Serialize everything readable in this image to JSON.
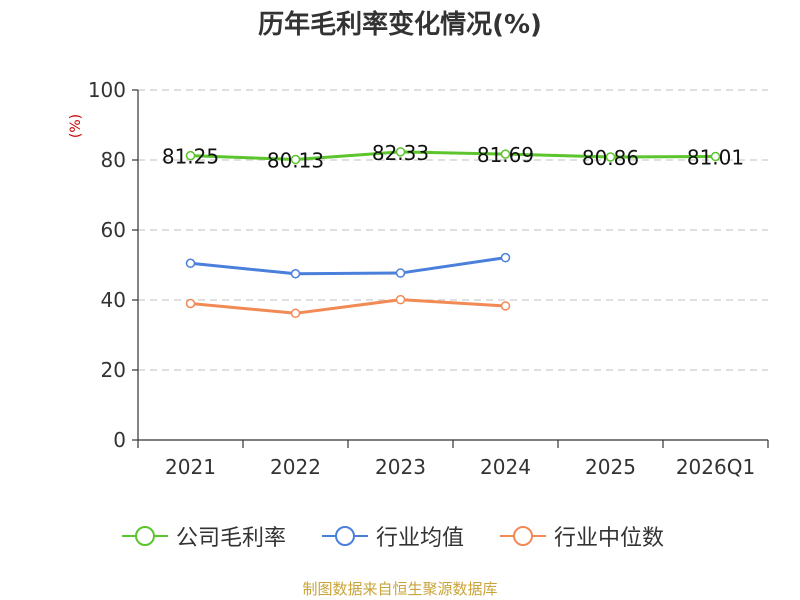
{
  "chart_data": {
    "type": "line",
    "title": "历年毛利率变化情况(%)",
    "ylabel": "(%)",
    "xlabel": "",
    "categories": [
      "2021",
      "2022",
      "2023",
      "2024",
      "2025",
      "2026Q1"
    ],
    "ylim": [
      0,
      100
    ],
    "yticks": [
      0,
      20,
      40,
      60,
      80,
      100
    ],
    "grid": true,
    "legend_position": "bottom",
    "series": [
      {
        "name": "公司毛利率",
        "color": "#5cc42c",
        "values": [
          81.25,
          80.13,
          82.33,
          81.69,
          80.86,
          81.01
        ],
        "labels": [
          "81.25",
          "80.13",
          "82.33",
          "81.69",
          "80.86",
          "81.01"
        ]
      },
      {
        "name": "行业均值",
        "color": "#4a7fdc",
        "values": [
          50.5,
          47.5,
          47.7,
          52.1,
          null,
          null
        ]
      },
      {
        "name": "行业中位数",
        "color": "#f28a55",
        "values": [
          39.0,
          36.2,
          40.1,
          38.3,
          null,
          null
        ]
      }
    ]
  },
  "footer": {
    "source": "制图数据来自恒生聚源数据库"
  }
}
